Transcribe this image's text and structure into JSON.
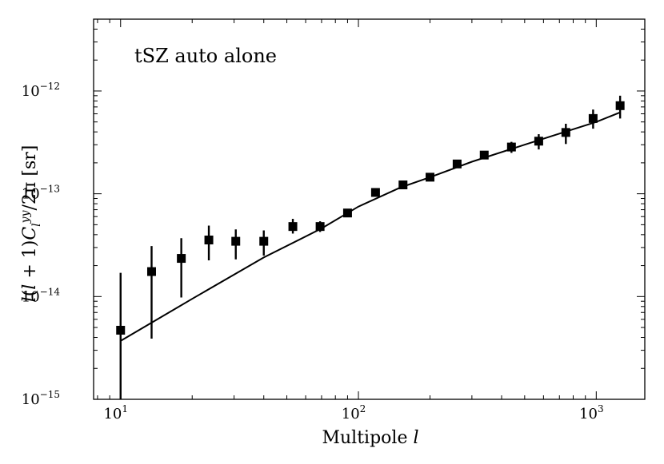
{
  "chart_data": {
    "type": "scatter",
    "annotation": "tSZ auto alone",
    "xlabel": "Multipole l",
    "ylabel": "l(l + 1)C_l^{yy}/2π [sr]",
    "xscale": "log",
    "yscale": "log",
    "xlim": [
      7.7,
      1600
    ],
    "ylim": [
      1e-15,
      5e-12
    ],
    "x_ticks": [
      {
        "value": 10,
        "base": "10",
        "exp": "1"
      },
      {
        "value": 100,
        "base": "10",
        "exp": "2"
      },
      {
        "value": 1000,
        "base": "10",
        "exp": "3"
      }
    ],
    "y_ticks": [
      {
        "value": 1e-15,
        "base": "10",
        "exp": "−15"
      },
      {
        "value": 1e-14,
        "base": "10",
        "exp": "−14"
      },
      {
        "value": 1e-13,
        "base": "10",
        "exp": "−13"
      },
      {
        "value": 1e-12,
        "base": "10",
        "exp": "−12"
      }
    ],
    "points": [
      {
        "x": 10,
        "y": 4.7e-15,
        "ylo": 9.5e-16,
        "yhi": 1.7e-14
      },
      {
        "x": 13.5,
        "y": 1.75e-14,
        "ylo": 3.9e-15,
        "yhi": 3.1e-14
      },
      {
        "x": 18,
        "y": 2.35e-14,
        "ylo": 9.8e-15,
        "yhi": 3.7e-14
      },
      {
        "x": 23.5,
        "y": 3.55e-14,
        "ylo": 2.25e-14,
        "yhi": 4.9e-14
      },
      {
        "x": 30.5,
        "y": 3.45e-14,
        "ylo": 2.3e-14,
        "yhi": 4.5e-14
      },
      {
        "x": 40,
        "y": 3.45e-14,
        "ylo": 2.5e-14,
        "yhi": 4.4e-14
      },
      {
        "x": 53,
        "y": 4.8e-14,
        "ylo": 4.1e-14,
        "yhi": 5.7e-14
      },
      {
        "x": 69,
        "y": 4.8e-14,
        "ylo": 4.25e-14,
        "yhi": 5.4e-14
      },
      {
        "x": 90,
        "y": 6.5e-14,
        "ylo": 6.1e-14,
        "yhi": 6.9e-14
      },
      {
        "x": 118,
        "y": 1.03e-13,
        "ylo": 1e-13,
        "yhi": 1.07e-13
      },
      {
        "x": 154,
        "y": 1.22e-13,
        "ylo": 1.18e-13,
        "yhi": 1.26e-13
      },
      {
        "x": 200,
        "y": 1.45e-13,
        "ylo": 1.39e-13,
        "yhi": 1.51e-13
      },
      {
        "x": 260,
        "y": 1.95e-13,
        "ylo": 1.87e-13,
        "yhi": 2.03e-13
      },
      {
        "x": 338,
        "y": 2.38e-13,
        "ylo": 2.2e-13,
        "yhi": 2.55e-13
      },
      {
        "x": 440,
        "y": 2.85e-13,
        "ylo": 2.5e-13,
        "yhi": 3.2e-13
      },
      {
        "x": 573,
        "y": 3.25e-13,
        "ylo": 2.7e-13,
        "yhi": 3.8e-13
      },
      {
        "x": 745,
        "y": 3.95e-13,
        "ylo": 3.05e-13,
        "yhi": 4.8e-13
      },
      {
        "x": 970,
        "y": 5.4e-13,
        "ylo": 4.3e-13,
        "yhi": 6.6e-13
      },
      {
        "x": 1260,
        "y": 7.2e-13,
        "ylo": 5.4e-13,
        "yhi": 9e-13
      }
    ],
    "model_line": [
      {
        "x": 10,
        "y": 3.7e-15
      },
      {
        "x": 20,
        "y": 9.5e-15
      },
      {
        "x": 40,
        "y": 2.4e-14
      },
      {
        "x": 70,
        "y": 4.6e-14
      },
      {
        "x": 100,
        "y": 7.5e-14
      },
      {
        "x": 150,
        "y": 1.15e-13
      },
      {
        "x": 200,
        "y": 1.45e-13
      },
      {
        "x": 300,
        "y": 2.05e-13
      },
      {
        "x": 500,
        "y": 3e-13
      },
      {
        "x": 700,
        "y": 3.85e-13
      },
      {
        "x": 1000,
        "y": 5e-13
      },
      {
        "x": 1260,
        "y": 6.2e-13
      }
    ],
    "colors": {
      "marker": "#000000",
      "line": "#000000",
      "frame": "#000000"
    },
    "grid": false
  }
}
